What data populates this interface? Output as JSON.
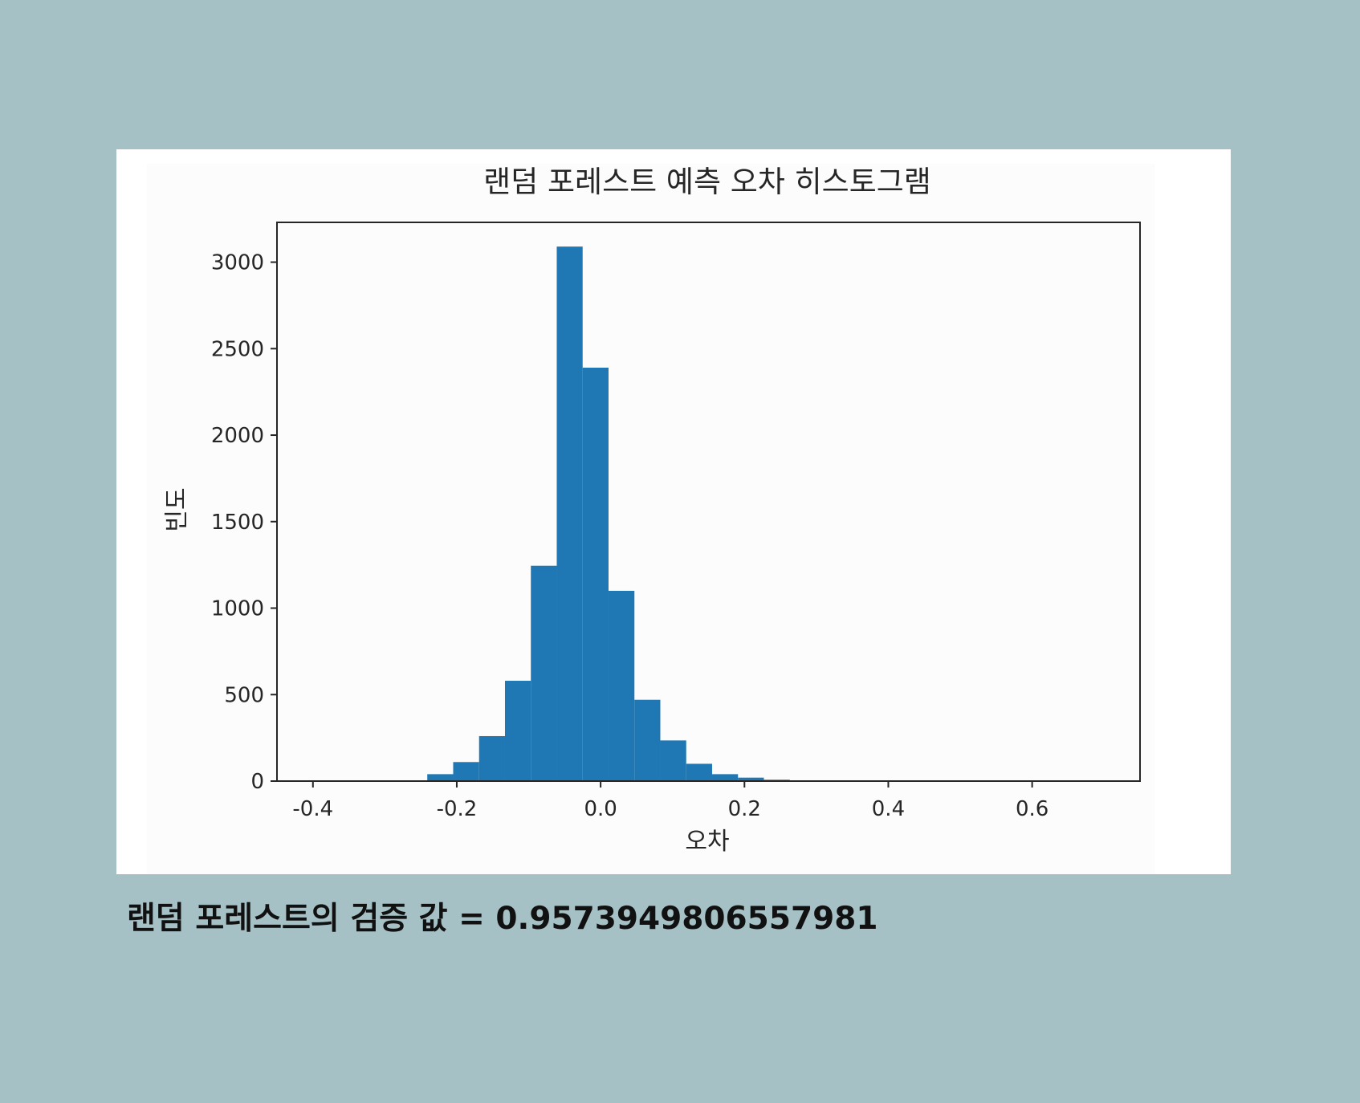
{
  "chart_data": {
    "type": "bar",
    "title": "랜덤 포레스트 예측 오차 히스토그램",
    "xlabel": "오차",
    "ylabel": "빈도",
    "xlim": [
      -0.45,
      0.75
    ],
    "ylim": [
      0,
      3230
    ],
    "x_ticks": [
      "-0.4",
      "-0.2",
      "0.0",
      "0.2",
      "0.4",
      "0.6"
    ],
    "x_tick_values": [
      -0.4,
      -0.2,
      0.0,
      0.2,
      0.4,
      0.6
    ],
    "y_ticks": [
      "0",
      "500",
      "1000",
      "1500",
      "2000",
      "2500",
      "3000"
    ],
    "y_tick_values": [
      0,
      500,
      1000,
      1500,
      2000,
      2500,
      3000
    ],
    "bin_edges": [
      -0.385,
      -0.349,
      -0.313,
      -0.277,
      -0.241,
      -0.205,
      -0.169,
      -0.133,
      -0.097,
      -0.061,
      -0.025,
      0.011,
      0.047,
      0.083,
      0.119,
      0.155,
      0.191,
      0.227,
      0.263,
      0.299,
      0.335,
      0.371,
      0.407,
      0.443,
      0.479,
      0.515,
      0.551,
      0.587,
      0.623,
      0.659,
      0.695
    ],
    "values": [
      1,
      1,
      2,
      4,
      40,
      110,
      260,
      580,
      1245,
      3090,
      2390,
      1100,
      470,
      235,
      100,
      40,
      20,
      8,
      4,
      2,
      1,
      1,
      1,
      1,
      1,
      1,
      1,
      1,
      1,
      1
    ],
    "color": "#1f77b4",
    "grid": false
  },
  "result": {
    "validation_text": "랜덤 포레스트의 검증 값 = 0.9573949806557981"
  }
}
